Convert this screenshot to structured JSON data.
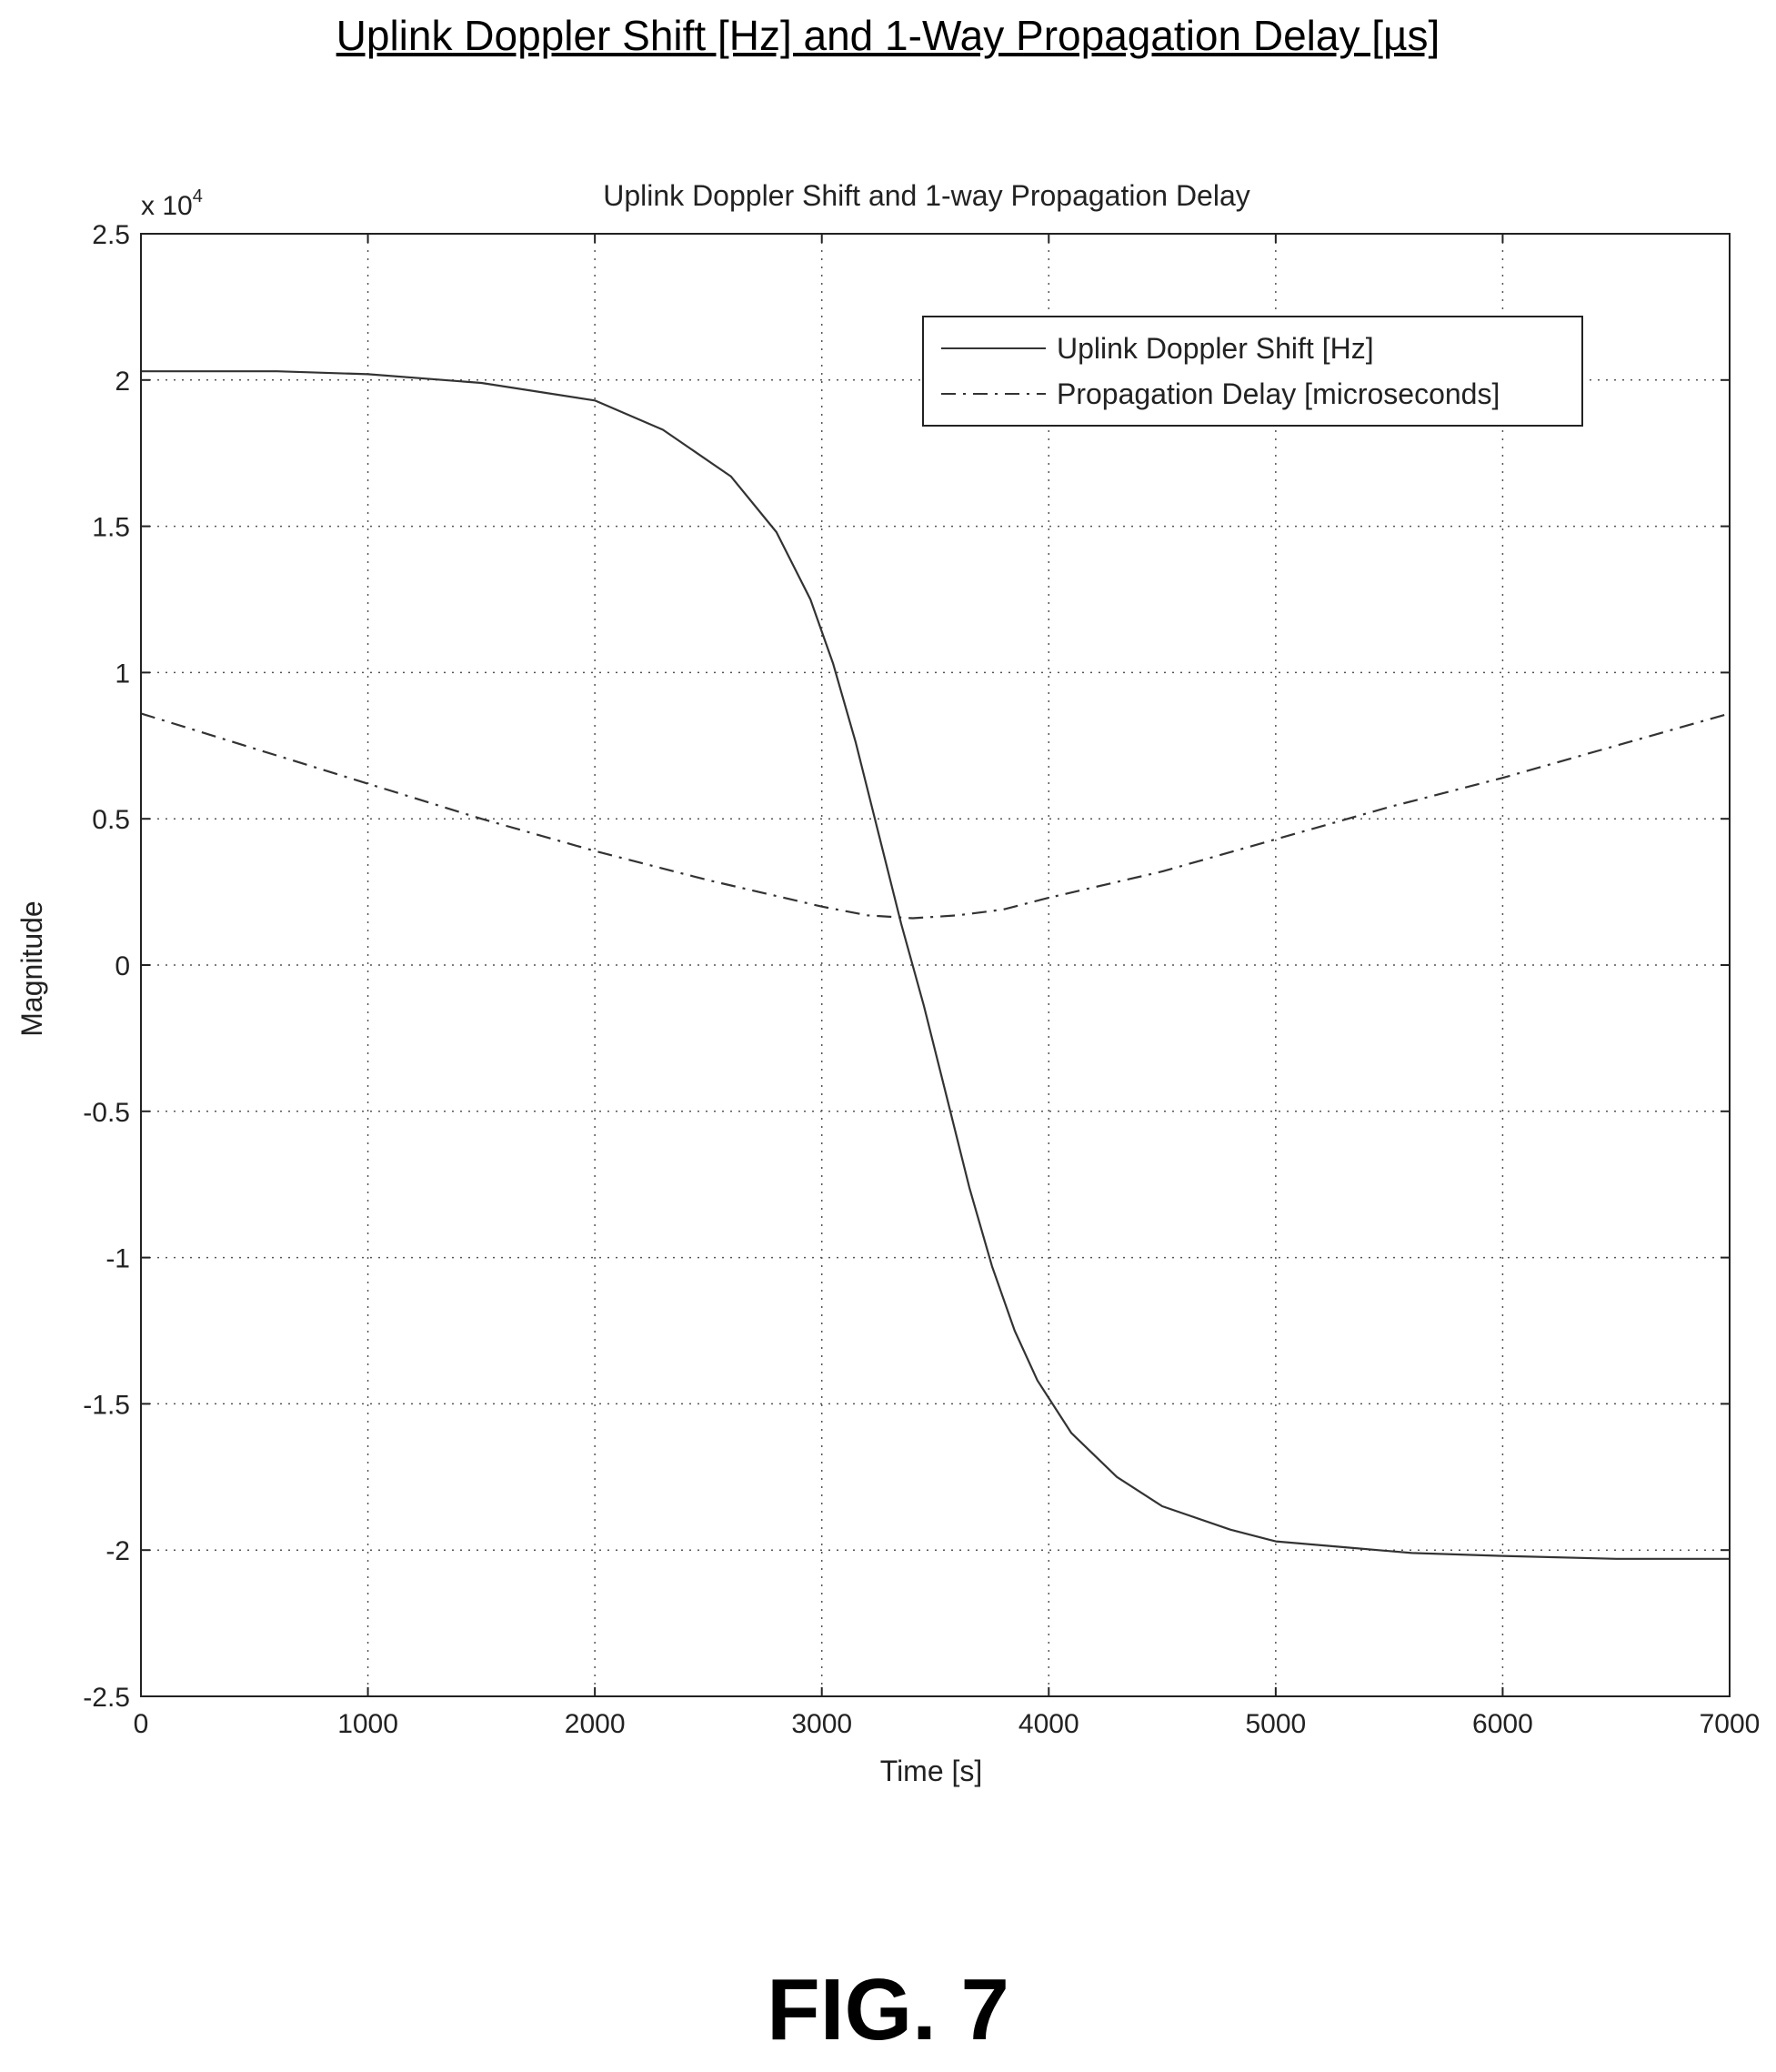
{
  "figure": {
    "title": "Uplink Doppler Shift [Hz] and 1-Way Propagation Delay [µs]",
    "label": "FIG. 7"
  },
  "chart_data": {
    "type": "line",
    "title": "Uplink Doppler Shift and 1-way Propagation Delay",
    "xlabel": "Time [s]",
    "ylabel": "Magnitude",
    "y_multiplier": "x 10",
    "y_multiplier_exp": "4",
    "xlim": [
      0,
      7000
    ],
    "ylim": [
      -25000,
      25000
    ],
    "x_ticks": [
      0,
      1000,
      2000,
      3000,
      4000,
      5000,
      6000,
      7000
    ],
    "x_tick_labels": [
      "0",
      "1000",
      "2000",
      "3000",
      "4000",
      "5000",
      "6000",
      "7000"
    ],
    "y_ticks": [
      25000,
      20000,
      15000,
      10000,
      5000,
      0,
      -5000,
      -10000,
      -15000,
      -20000,
      -25000
    ],
    "y_tick_labels": [
      "2.5",
      "2",
      "1.5",
      "1",
      "0.5",
      "0",
      "-0.5",
      "-1",
      "-1.5",
      "-2",
      "-2.5"
    ],
    "grid": true,
    "legend_position": "top-right",
    "series": [
      {
        "name": "Uplink Doppler Shift [Hz]",
        "style": "solid",
        "color": "#333333",
        "x": [
          0,
          600,
          1000,
          1500,
          2000,
          2300,
          2600,
          2800,
          2950,
          3050,
          3150,
          3250,
          3350,
          3450,
          3550,
          3650,
          3750,
          3850,
          3950,
          4100,
          4300,
          4500,
          4800,
          5000,
          5300,
          5600,
          6000,
          6500,
          7000
        ],
        "y": [
          20300,
          20300,
          20200,
          19900,
          19300,
          18300,
          16700,
          14800,
          12500,
          10300,
          7600,
          4500,
          1400,
          -1400,
          -4500,
          -7600,
          -10300,
          -12500,
          -14200,
          -16000,
          -17500,
          -18500,
          -19300,
          -19700,
          -19900,
          -20100,
          -20200,
          -20300,
          -20300
        ]
      },
      {
        "name": "Propagation Delay [microseconds]",
        "style": "dashdot",
        "color": "#333333",
        "x": [
          0,
          500,
          1000,
          1500,
          2000,
          2500,
          3000,
          3200,
          3400,
          3600,
          3800,
          4000,
          4500,
          5000,
          5500,
          6000,
          6500,
          7000
        ],
        "y": [
          8600,
          7400,
          6200,
          5000,
          3900,
          2900,
          2000,
          1700,
          1600,
          1700,
          1900,
          2300,
          3200,
          4300,
          5400,
          6400,
          7500,
          8600
        ]
      }
    ]
  }
}
